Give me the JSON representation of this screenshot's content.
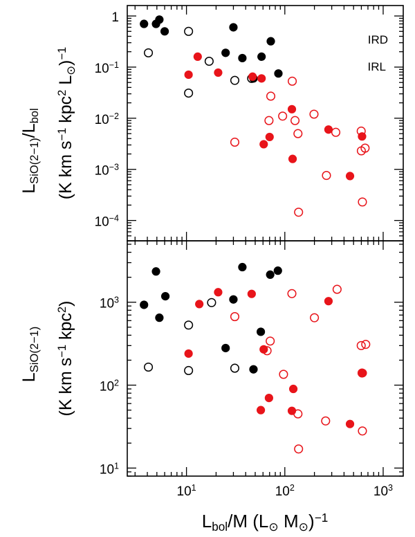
{
  "colors": {
    "ird": "#000000",
    "irl": "#e8141a"
  },
  "chart_data": [
    {
      "type": "scatter",
      "panel": "top",
      "xscale": "log",
      "yscale": "log",
      "xlim": [
        2.5,
        1600
      ],
      "ylim": [
        4e-05,
        1.6
      ],
      "yticks": [
        {
          "v": 1,
          "m": "1",
          "e": ""
        },
        {
          "v": 0.1,
          "m": "10",
          "e": "−1"
        },
        {
          "v": 0.01,
          "m": "10",
          "e": "−2"
        },
        {
          "v": 0.001,
          "m": "10",
          "e": "−3"
        },
        {
          "v": 0.0001,
          "m": "10",
          "e": "−4"
        }
      ],
      "ylabel": {
        "line1": [
          {
            "t": "L"
          },
          {
            "t": "SiO(2−1)",
            "sub": true
          },
          {
            "t": "/L"
          },
          {
            "t": "bol",
            "sub": true
          }
        ],
        "line2": [
          {
            "t": "(K km s"
          },
          {
            "t": "−1",
            "sup": true
          },
          {
            "t": " kpc"
          },
          {
            "t": "2",
            "sup": true
          },
          {
            "t": " L"
          },
          {
            "t": "⊙",
            "sub": true
          },
          {
            "t": ")"
          },
          {
            "t": "−1",
            "sup": true
          }
        ]
      },
      "legend": [
        {
          "label": "IRD",
          "series": "IRD"
        },
        {
          "label": "IRL",
          "series": "IRL"
        }
      ],
      "series": [
        {
          "name": "IRD filled",
          "group": "IRD",
          "filled": true,
          "points": [
            [
              3.7,
              0.7
            ],
            [
              4.9,
              0.7
            ],
            [
              5.3,
              0.85
            ],
            [
              6.0,
              0.5
            ],
            [
              25,
              0.19
            ],
            [
              30,
              0.6
            ],
            [
              37,
              0.15
            ],
            [
              48,
              0.06
            ],
            [
              58,
              0.16
            ],
            [
              72,
              0.32
            ],
            [
              86,
              0.075
            ]
          ]
        },
        {
          "name": "IRD open",
          "group": "IRD",
          "filled": false,
          "points": [
            [
              4.1,
              0.19
            ],
            [
              10.5,
              0.5
            ],
            [
              10.5,
              0.031
            ],
            [
              17,
              0.13
            ],
            [
              31,
              0.055
            ],
            [
              46,
              0.06
            ]
          ]
        },
        {
          "name": "IRL filled",
          "group": "IRL",
          "filled": true,
          "points": [
            [
              10.5,
              0.071
            ],
            [
              13,
              0.16
            ],
            [
              21,
              0.078
            ],
            [
              47,
              0.065
            ],
            [
              58,
              0.06
            ],
            [
              61,
              0.0031
            ],
            [
              70,
              0.0043
            ],
            [
              118,
              0.015
            ],
            [
              120,
              0.0016
            ],
            [
              278,
              0.006
            ],
            [
              460,
              0.00074
            ],
            [
              610,
              0.0044
            ]
          ]
        },
        {
          "name": "IRL open",
          "group": "IRL",
          "filled": false,
          "points": [
            [
              31,
              0.0034
            ],
            [
              69,
              0.009
            ],
            [
              72,
              0.027
            ],
            [
              95,
              0.011
            ],
            [
              119,
              0.053
            ],
            [
              127,
              0.009
            ],
            [
              136,
              0.005
            ],
            [
              138,
              0.000145
            ],
            [
              198,
              0.012
            ],
            [
              265,
              0.00076
            ],
            [
              330,
              0.0053
            ],
            [
              598,
              0.0056
            ],
            [
              600,
              0.0023
            ],
            [
              655,
              0.0026
            ],
            [
              615,
              0.00023
            ]
          ]
        }
      ]
    },
    {
      "type": "scatter",
      "panel": "bottom",
      "xscale": "log",
      "yscale": "log",
      "xlim": [
        2.5,
        1600
      ],
      "ylim": [
        8,
        5500
      ],
      "xticks": [
        {
          "v": 10,
          "m": "10",
          "e": "1"
        },
        {
          "v": 100,
          "m": "10",
          "e": "2"
        },
        {
          "v": 1000,
          "m": "10",
          "e": "3"
        }
      ],
      "yticks": [
        {
          "v": 1000,
          "m": "10",
          "e": "3"
        },
        {
          "v": 100,
          "m": "10",
          "e": "2"
        },
        {
          "v": 10,
          "m": "10",
          "e": "1"
        }
      ],
      "xlabel": [
        {
          "t": "L"
        },
        {
          "t": "bol",
          "sub": true
        },
        {
          "t": "/M  (L"
        },
        {
          "t": "⊙",
          "sub": true
        },
        {
          "t": " M"
        },
        {
          "t": "⊙",
          "sub": true
        },
        {
          "t": ")"
        },
        {
          "t": "−1",
          "sup": true
        }
      ],
      "ylabel": {
        "line1": [
          {
            "t": "L"
          },
          {
            "t": "SiO(2−1)",
            "sub": true
          }
        ],
        "line2": [
          {
            "t": "(K km s"
          },
          {
            "t": "−1",
            "sup": true
          },
          {
            "t": " kpc"
          },
          {
            "t": "2",
            "sup": true
          },
          {
            "t": ")"
          }
        ]
      },
      "series": [
        {
          "name": "IRD filled",
          "group": "IRD",
          "filled": true,
          "points": [
            [
              3.7,
              930
            ],
            [
              4.9,
              2350
            ],
            [
              5.3,
              650
            ],
            [
              6.1,
              1180
            ],
            [
              25,
              280
            ],
            [
              30,
              1080
            ],
            [
              37,
              2650
            ],
            [
              48,
              155
            ],
            [
              57,
              440
            ],
            [
              71,
              2150
            ],
            [
              85,
              2400
            ]
          ]
        },
        {
          "name": "IRD open",
          "group": "IRD",
          "filled": false,
          "points": [
            [
              4.1,
              165
            ],
            [
              10.5,
              530
            ],
            [
              10.5,
              150
            ],
            [
              18,
              990
            ],
            [
              31,
              160
            ]
          ]
        },
        {
          "name": "IRL filled",
          "group": "IRL",
          "filled": true,
          "points": [
            [
              10.5,
              240
            ],
            [
              13.5,
              950
            ],
            [
              21,
              1320
            ],
            [
              46,
              1260
            ],
            [
              57,
              50
            ],
            [
              61,
              270
            ],
            [
              69,
              70
            ],
            [
              118,
              49
            ],
            [
              122,
              90
            ],
            [
              278,
              1030
            ],
            [
              460,
              34
            ],
            [
              620,
              140
            ]
          ]
        },
        {
          "name": "IRL open",
          "group": "IRL",
          "filled": false,
          "points": [
            [
              31,
              670
            ],
            [
              66,
              260
            ],
            [
              71,
              340
            ],
            [
              97,
              135
            ],
            [
              118,
              1270
            ],
            [
              136,
              45
            ],
            [
              138,
              17
            ],
            [
              200,
              650
            ],
            [
              260,
              37
            ],
            [
              340,
              1430
            ],
            [
              598,
              300
            ],
            [
              610,
              140
            ],
            [
              615,
              28
            ],
            [
              665,
              310
            ]
          ]
        }
      ]
    }
  ]
}
